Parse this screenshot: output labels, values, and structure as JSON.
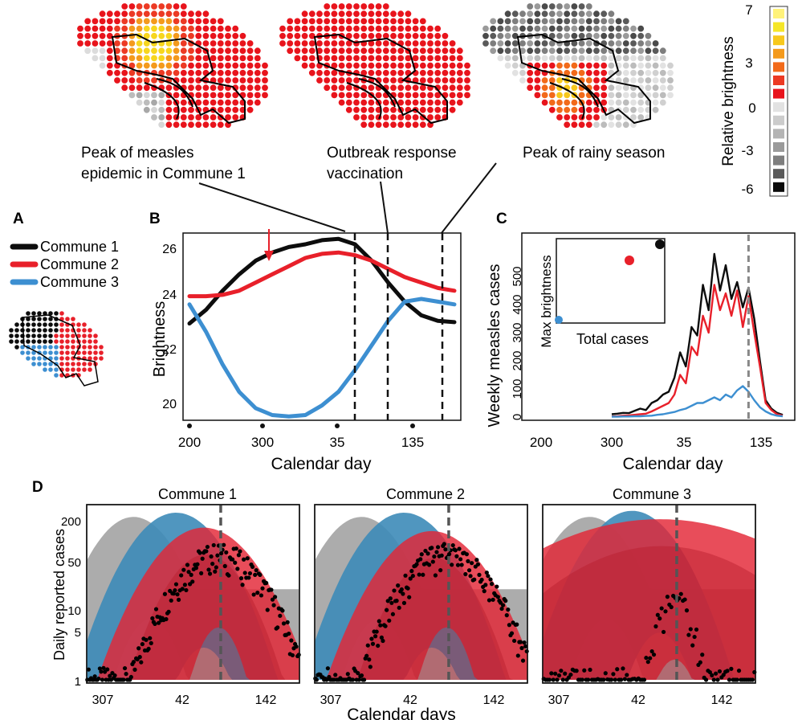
{
  "maps": {
    "captions": [
      [
        "Peak of measles",
        "epidemic in Commune 1"
      ],
      [
        "Outbreak response",
        "vaccination"
      ],
      [
        "Peak of rainy season"
      ]
    ],
    "brightness_legend": {
      "title": "Relative brightness",
      "tick_labels": [
        "7",
        "3",
        "0",
        "-3",
        "-6"
      ],
      "colors": [
        "#fff27a",
        "#f5e628",
        "#f7c81c",
        "#f49a1c",
        "#f26a1a",
        "#ec3a24",
        "#e8141c",
        "#e2e2e2",
        "#cccccc",
        "#b4b4b4",
        "#9a9a9a",
        "#7e7e7e",
        "#5a5a5a",
        "#0a0a0a"
      ]
    }
  },
  "panel_a": {
    "letter": "A",
    "legend": [
      {
        "name": "Commune 1",
        "color": "#0d0d0d"
      },
      {
        "name": "Commune 2",
        "color": "#e8202a"
      },
      {
        "name": "Commune 3",
        "color": "#3d8fd1"
      }
    ]
  },
  "panel_b": {
    "letter": "B",
    "xlabel": "Calendar day",
    "ylabel": "Brightness",
    "x_ticks": [
      "200",
      "300",
      "35",
      "135"
    ],
    "y_ticks": [
      "20",
      "22",
      "24",
      "26"
    ]
  },
  "panel_c": {
    "letter": "C",
    "xlabel": "Calendar day",
    "ylabel": "Weekly measles cases",
    "x_ticks": [
      "200",
      "300",
      "35",
      "135"
    ],
    "y_ticks": [
      "0",
      "100",
      "200",
      "300",
      "400",
      "500"
    ],
    "inset": {
      "xlabel": "Total cases",
      "ylabel": "Max brightness"
    }
  },
  "panel_d": {
    "letter": "D",
    "xlabel": "Calendar days",
    "ylabel": "Daily reported cases",
    "x_ticks": [
      "307",
      "42",
      "142"
    ],
    "y_ticks": [
      "1",
      "5",
      "10",
      "50",
      "200"
    ],
    "titles": [
      "Commune 1",
      "Commune 2",
      "Commune 3"
    ]
  },
  "chart_data": [
    {
      "type": "line",
      "panel": "B",
      "xlabel": "Calendar day",
      "ylabel": "Brightness",
      "x_day_sequence": [
        200,
        220,
        240,
        260,
        280,
        300,
        320,
        340,
        360,
        15,
        35,
        55,
        75,
        95,
        115,
        135,
        155
      ],
      "ylim": [
        19.5,
        26.6
      ],
      "series": [
        {
          "name": "Commune 1",
          "color": "#0d0d0d",
          "values": [
            23.1,
            23.6,
            24.3,
            24.9,
            25.4,
            25.7,
            25.9,
            26.0,
            26.15,
            26.2,
            26.0,
            25.4,
            24.6,
            23.9,
            23.4,
            23.2,
            23.15
          ]
        },
        {
          "name": "Commune 2",
          "color": "#e8202a",
          "values": [
            24.1,
            24.1,
            24.15,
            24.3,
            24.6,
            24.9,
            25.2,
            25.5,
            25.65,
            25.7,
            25.6,
            25.4,
            25.1,
            24.8,
            24.6,
            24.4,
            24.3
          ]
        },
        {
          "name": "Commune 3",
          "color": "#3d8fd1",
          "values": [
            23.8,
            22.8,
            21.6,
            20.6,
            20.0,
            19.75,
            19.7,
            19.75,
            20.1,
            20.6,
            21.4,
            22.3,
            23.2,
            23.9,
            24.0,
            23.9,
            23.8
          ]
        }
      ],
      "markers": {
        "arrow_day": 305,
        "vertical_dashed_days": [
          60,
          95,
          130
        ]
      }
    },
    {
      "type": "line",
      "panel": "C",
      "xlabel": "Calendar day",
      "ylabel": "Weekly measles cases",
      "ylim": [
        0,
        600
      ],
      "series": [
        {
          "name": "Commune 1",
          "color": "#0d0d0d",
          "values": [
            10,
            12,
            15,
            14,
            22,
            30,
            25,
            50,
            60,
            80,
            90,
            140,
            230,
            180,
            320,
            290,
            470,
            380,
            580,
            450,
            540,
            420,
            480,
            390,
            460,
            350,
            200,
            60,
            30,
            15,
            8
          ]
        },
        {
          "name": "Commune 2",
          "color": "#e8202a",
          "values": [
            2,
            3,
            5,
            6,
            8,
            10,
            12,
            20,
            30,
            40,
            50,
            80,
            150,
            120,
            250,
            220,
            360,
            300,
            470,
            380,
            440,
            360,
            450,
            320,
            430,
            300,
            180,
            50,
            25,
            10,
            5
          ]
        },
        {
          "name": "Commune 3",
          "color": "#3d8fd1",
          "values": [
            1,
            1,
            2,
            2,
            3,
            3,
            4,
            5,
            8,
            10,
            14,
            18,
            25,
            30,
            40,
            50,
            50,
            60,
            70,
            60,
            80,
            70,
            95,
            110,
            90,
            60,
            35,
            20,
            10,
            5,
            3
          ]
        }
      ],
      "vertical_dashed_index": 24,
      "inset": {
        "type": "scatter",
        "xlabel": "Total cases",
        "ylabel": "Max brightness"
      }
    },
    {
      "type": "area",
      "panel": "D",
      "xlabel": "Calendar days",
      "ylabel": "Daily reported cases",
      "x_ticks": [
        307,
        42,
        142
      ],
      "y_ticks": [
        1,
        5,
        10,
        50,
        200
      ],
      "y_scale": "log",
      "legend_colors": {
        "model_grey": "#a3a3a3",
        "model_blue": "#3d8bb8",
        "model_red": "#e32636",
        "observed": "#000000"
      },
      "vertical_dashed_day": 95
    }
  ]
}
